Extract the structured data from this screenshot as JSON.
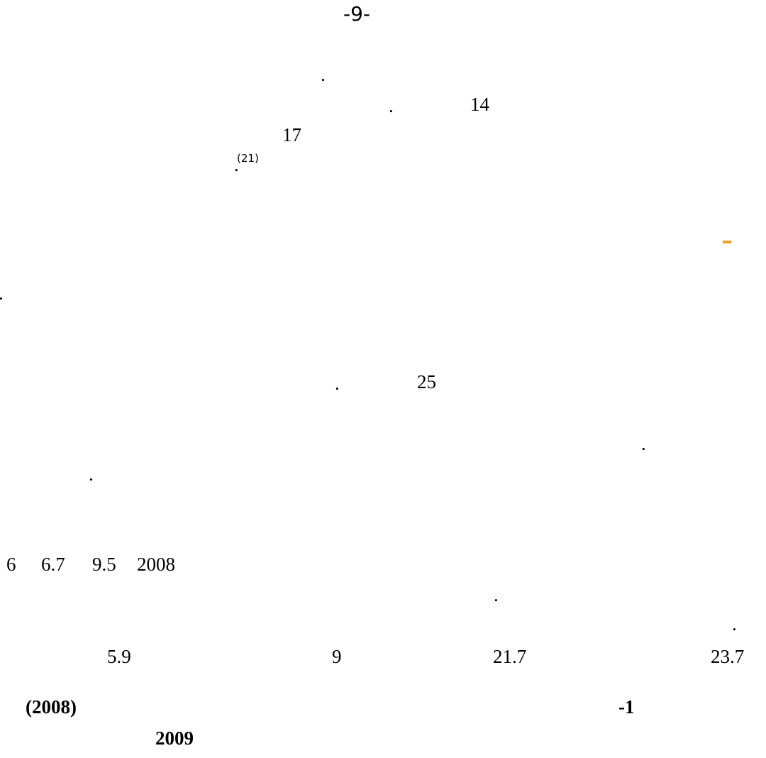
{
  "page": {
    "page_number": "-9-",
    "accent_color": "#f59a23"
  },
  "body": {
    "dot_1": ".",
    "num_14": "14",
    "dot_2": ".",
    "num_17": "17",
    "footnote_dot": ".",
    "footnote_ref": "(21)",
    "accent_dash": "-",
    "dot_left": ".",
    "num_25": "25",
    "dot_3": ".",
    "dot_4": ".",
    "dot_5": ".",
    "stat_6": "6",
    "stat_6_7": "6.7",
    "stat_9_5": "9.5",
    "stat_2008": "2008",
    "dot_6": ".",
    "dot_7": ".",
    "stat_5_9": "5.9",
    "stat_9": "9",
    "stat_21_7": "21.7",
    "stat_23_7": "23.7"
  },
  "section": {
    "heading_number": "-1",
    "heading_year_paren": "(2008)",
    "heading_year": "2009"
  }
}
